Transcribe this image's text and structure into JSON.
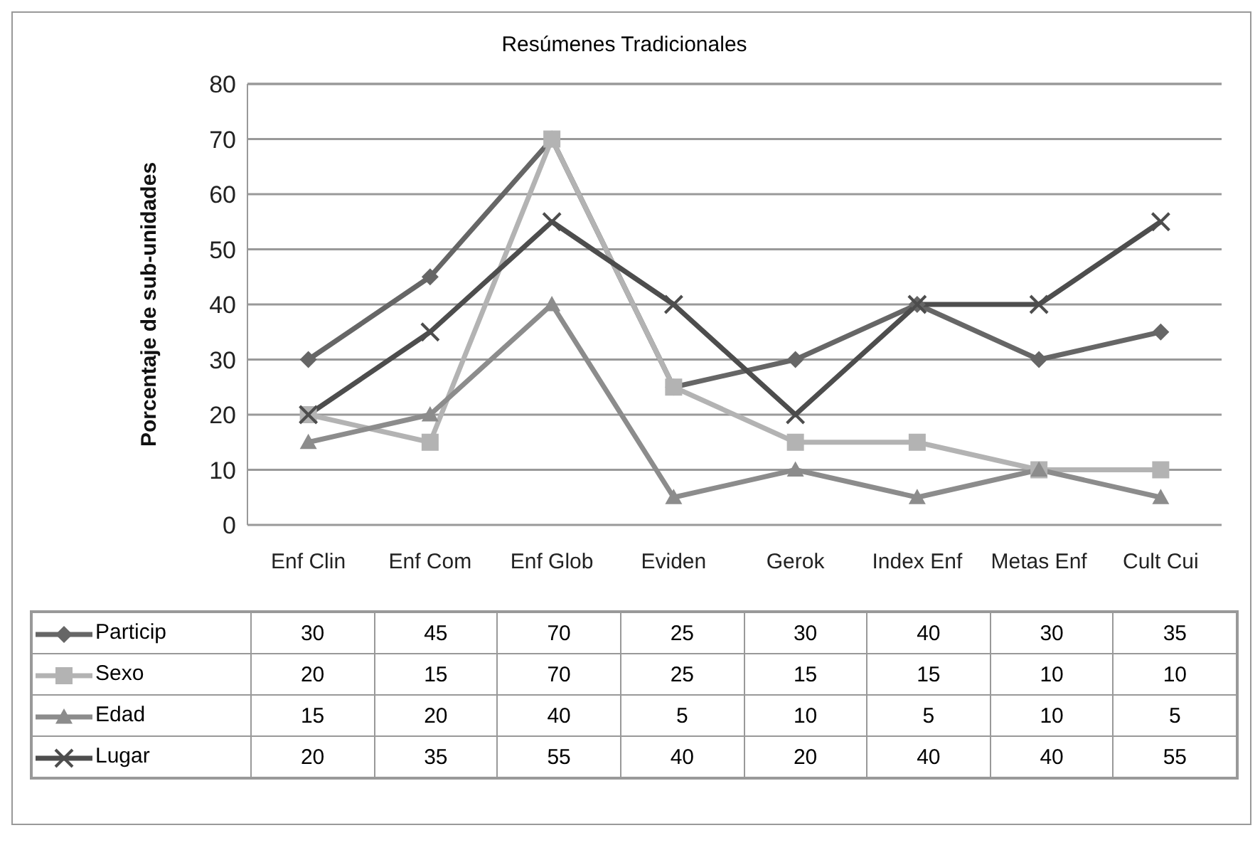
{
  "chart_data": {
    "type": "line",
    "title": "Resúmenes Tradicionales",
    "ylabel": "Porcentaje de sub-unidades",
    "categories": [
      "Enf Clin",
      "Enf Com",
      "Enf Glob",
      "Eviden",
      "Gerok",
      "Index Enf",
      "Metas Enf",
      "Cult Cui"
    ],
    "series": [
      {
        "name": "Particip",
        "color": "#666666",
        "marker": "diamond",
        "values": [
          30,
          45,
          70,
          25,
          30,
          40,
          30,
          35
        ]
      },
      {
        "name": "Sexo",
        "color": "#b3b3b3",
        "marker": "square",
        "values": [
          20,
          15,
          70,
          25,
          15,
          15,
          10,
          10
        ]
      },
      {
        "name": "Edad",
        "color": "#8c8c8c",
        "marker": "triangle",
        "values": [
          15,
          20,
          40,
          5,
          10,
          5,
          10,
          5
        ]
      },
      {
        "name": "Lugar",
        "color": "#4d4d4d",
        "marker": "cross",
        "values": [
          20,
          35,
          55,
          40,
          20,
          40,
          40,
          55
        ]
      }
    ],
    "ylim": [
      0,
      80
    ],
    "yticks": [
      0,
      10,
      20,
      30,
      40,
      50,
      60,
      70,
      80
    ],
    "grid": "y",
    "legend": "bottom",
    "data_labels": true
  }
}
